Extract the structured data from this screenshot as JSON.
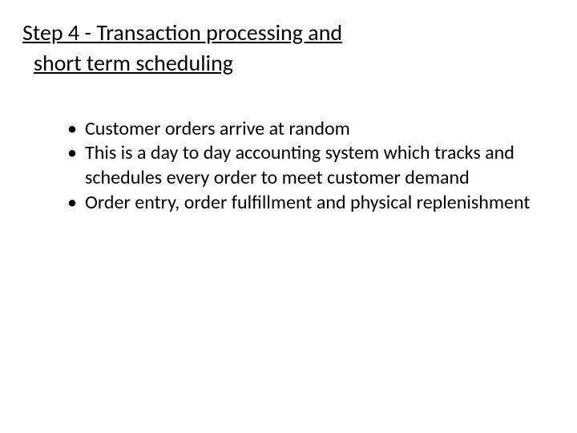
{
  "slide": {
    "title_line1": "Step 4 - Transaction processing and",
    "title_line2": "short term scheduling",
    "bullets": [
      "Customer orders arrive at random",
      "This is a day to day accounting system which tracks and schedules every order to meet customer demand",
      "Order entry, order fulfillment and physical replenishment"
    ]
  },
  "colors": {
    "background": "#ffffff",
    "text": "#000000"
  },
  "typography": {
    "title_fontsize": 28,
    "bullet_fontsize": 24,
    "font_family": "Calibri"
  }
}
